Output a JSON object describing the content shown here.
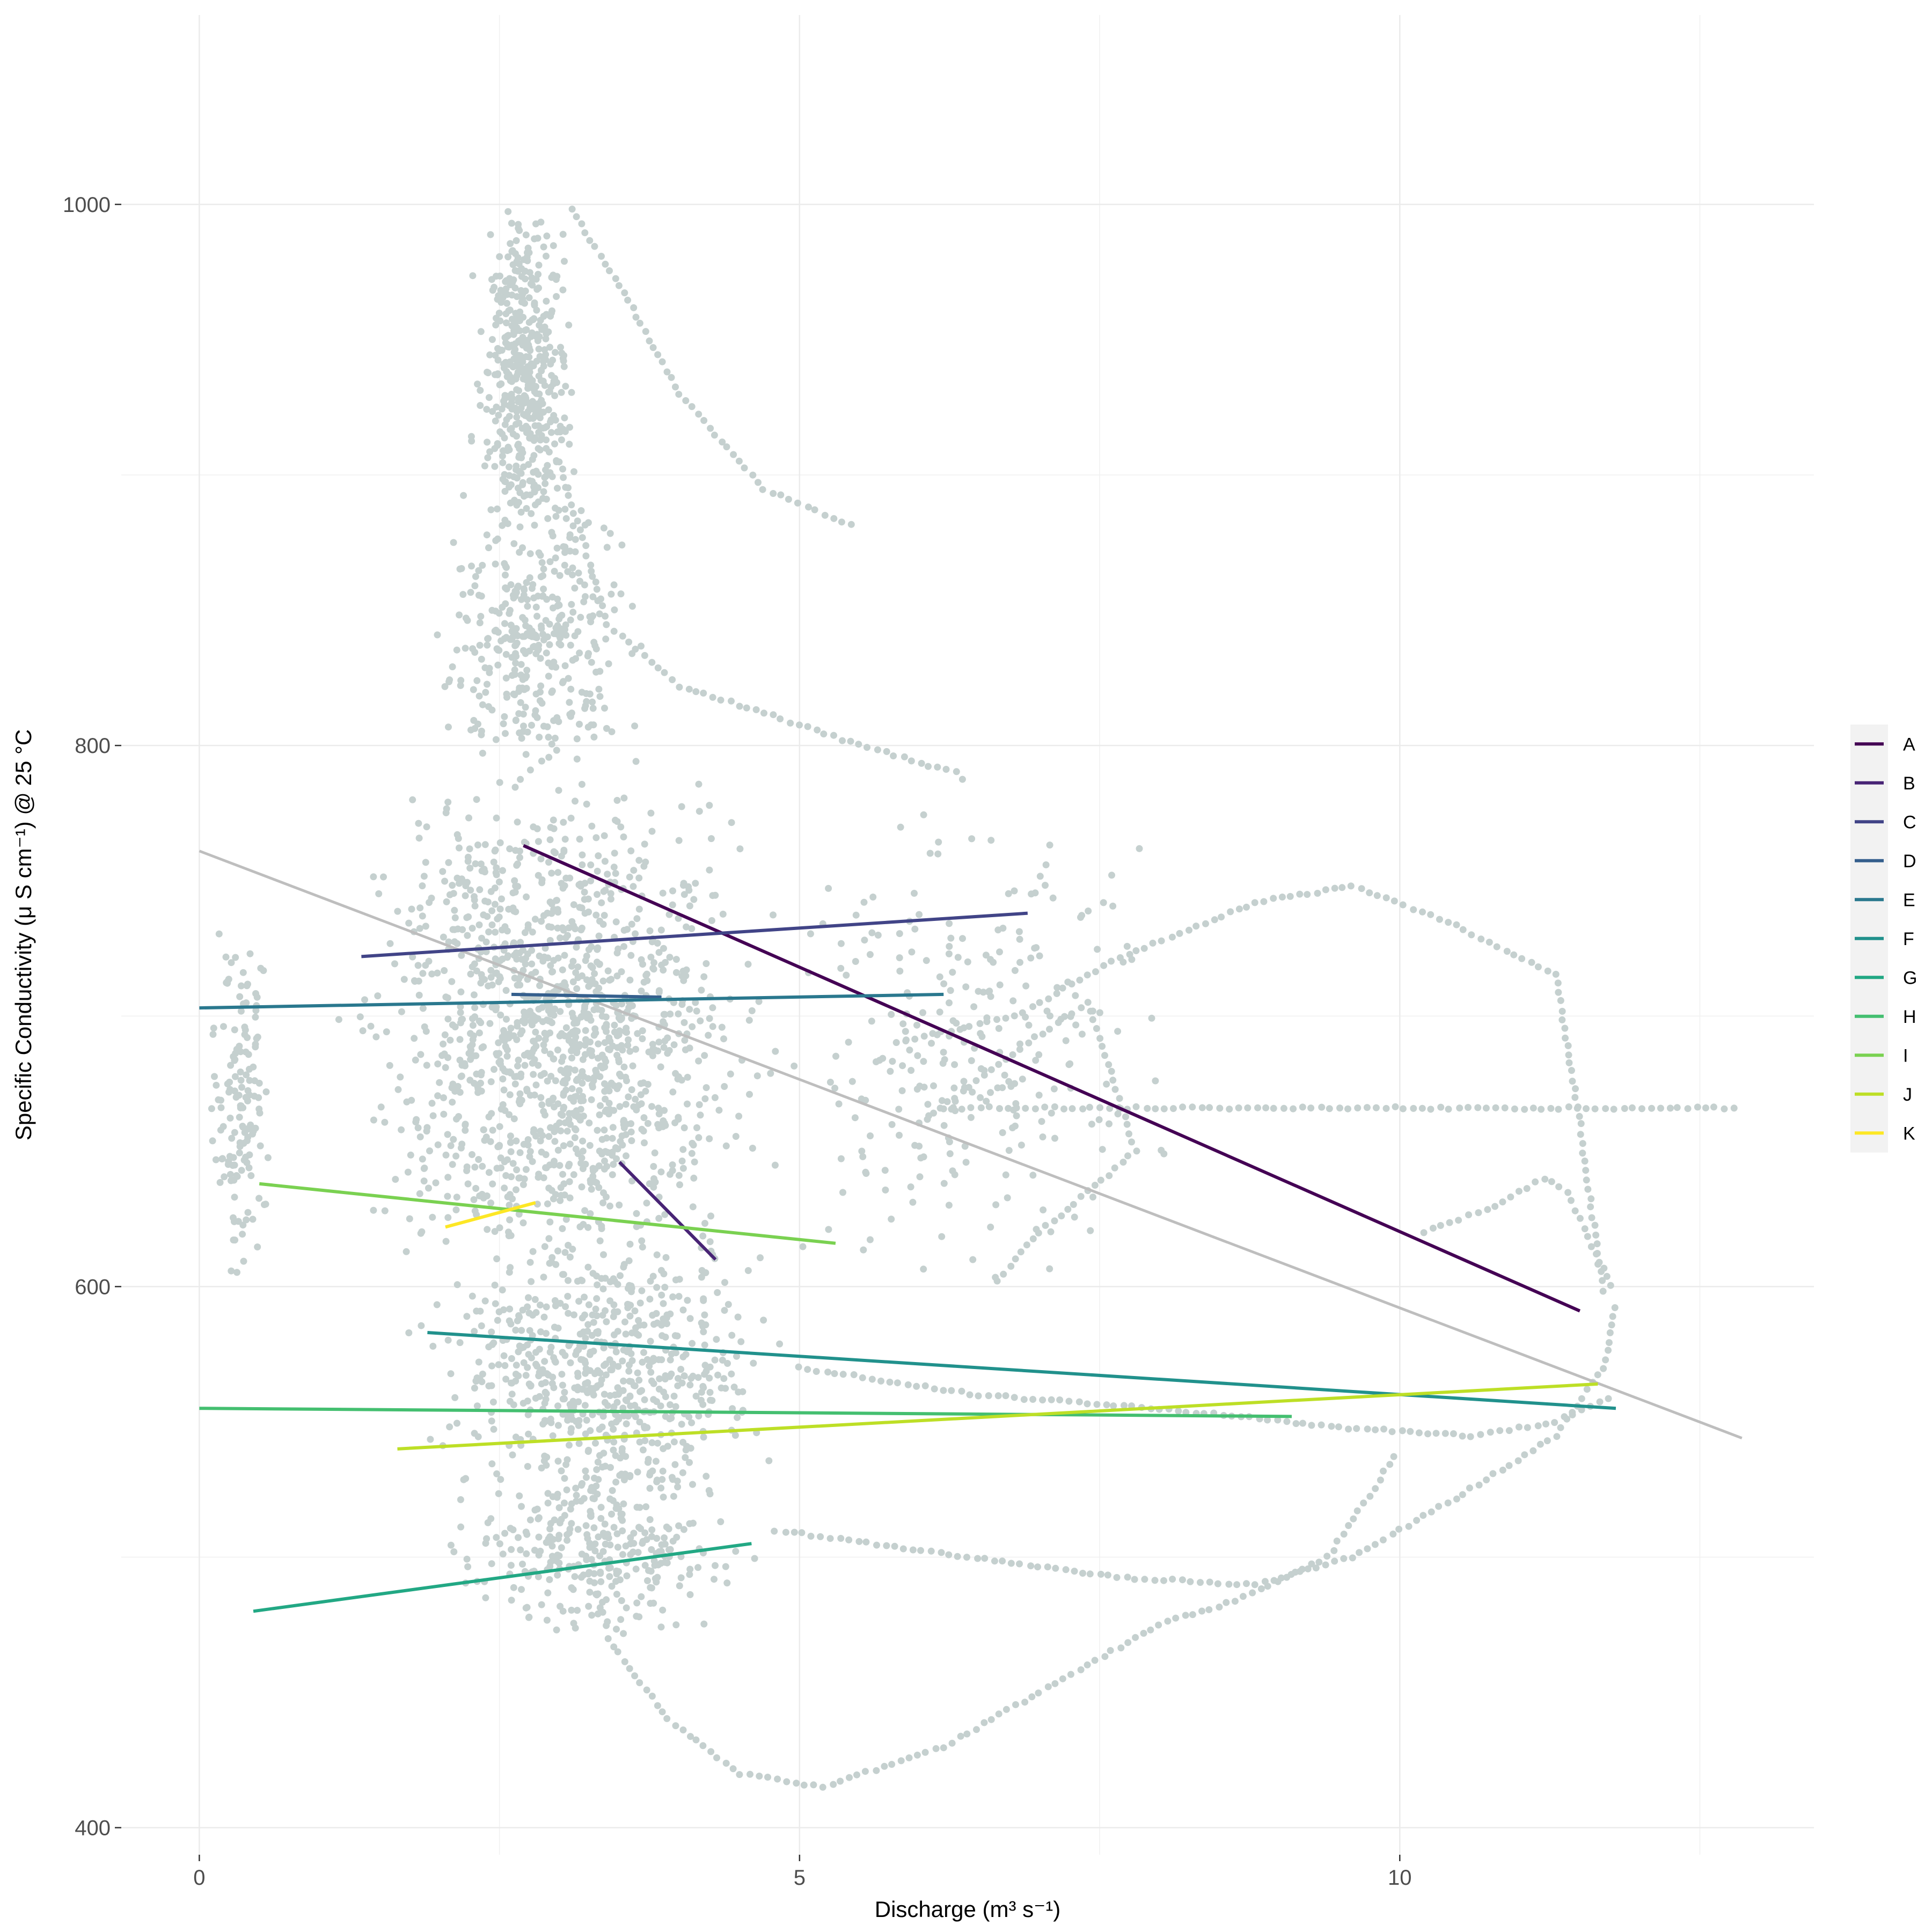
{
  "chart_data": {
    "type": "scatter",
    "xlabel": "Discharge (m³ s⁻¹)",
    "ylabel": "Specific Conductivity (μ S cm⁻¹) @ 25 °C",
    "xlim": [
      -0.65,
      13.45
    ],
    "ylim": [
      390,
      1070
    ],
    "x_ticks": [
      0,
      5,
      10
    ],
    "y_ticks": [
      400,
      600,
      800,
      1000
    ],
    "grid": true,
    "legend_position": "right",
    "point_color": "#c5d0cf",
    "overall_fit": {
      "color": "#bebebe",
      "x": [
        0,
        12.85
      ],
      "y": [
        761,
        544
      ]
    },
    "series": [
      {
        "name": "A",
        "color": "#440154",
        "x": [
          2.7,
          11.5
        ],
        "y": [
          763,
          591
        ]
      },
      {
        "name": "B",
        "color": "#482475",
        "x": [
          3.5,
          4.3
        ],
        "y": [
          646,
          610
        ]
      },
      {
        "name": "C",
        "color": "#414487",
        "x": [
          1.35,
          6.9
        ],
        "y": [
          722,
          738
        ]
      },
      {
        "name": "D",
        "color": "#355f8d",
        "x": [
          2.6,
          3.85
        ],
        "y": [
          708,
          707
        ]
      },
      {
        "name": "E",
        "color": "#2a788e",
        "x": [
          0,
          6.2
        ],
        "y": [
          703,
          708
        ]
      },
      {
        "name": "F",
        "color": "#21918c",
        "x": [
          1.9,
          11.8
        ],
        "y": [
          583,
          555
        ]
      },
      {
        "name": "G",
        "color": "#22a884",
        "x": [
          0.45,
          4.6
        ],
        "y": [
          480,
          505
        ]
      },
      {
        "name": "H",
        "color": "#44bf70",
        "x": [
          0,
          9.1
        ],
        "y": [
          555,
          552
        ]
      },
      {
        "name": "I",
        "color": "#7ad151",
        "x": [
          0.5,
          5.3
        ],
        "y": [
          638,
          616
        ]
      },
      {
        "name": "J",
        "color": "#bddf26",
        "x": [
          1.65,
          11.65
        ],
        "y": [
          540,
          564
        ]
      },
      {
        "name": "K",
        "color": "#fde725",
        "x": [
          2.05,
          2.8
        ],
        "y": [
          622,
          631
        ]
      }
    ],
    "point_clusters": [
      {
        "x": [
          2.2,
          3.2
        ],
        "y": [
          880,
          1000
        ],
        "n": 480
      },
      {
        "x": [
          1.8,
          3.8
        ],
        "y": [
          780,
          900
        ],
        "n": 380
      },
      {
        "x": [
          1.0,
          5.0
        ],
        "y": [
          600,
          790
        ],
        "n": 1300
      },
      {
        "x": [
          0,
          0.7
        ],
        "y": [
          600,
          740
        ],
        "n": 150
      },
      {
        "x": [
          1.5,
          5.2
        ],
        "y": [
          520,
          620
        ],
        "n": 620
      },
      {
        "x": [
          1.8,
          4.8
        ],
        "y": [
          470,
          540
        ],
        "n": 320
      },
      {
        "x": [
          4.5,
          8.5
        ],
        "y": [
          600,
          780
        ],
        "n": 260
      }
    ],
    "point_paths": [
      {
        "x": [
          5.8,
          6.8,
          7.6,
          8.8,
          9.6,
          10.4,
          11.3,
          11.5,
          11.7
        ],
        "y": [
          690,
          700,
          720,
          742,
          748,
          735,
          715,
          660,
          595
        ]
      },
      {
        "x": [
          6.2,
          8.5,
          10.8,
          12.85
        ],
        "y": [
          666,
          666,
          666,
          666
        ]
      },
      {
        "x": [
          4.8,
          6.4,
          7.8,
          8.8,
          9.6,
          10.4,
          11.3,
          11.7,
          11.8
        ],
        "y": [
          510,
          500,
          492,
          490,
          500,
          520,
          545,
          570,
          595
        ]
      },
      {
        "x": [
          3.4,
          3.9,
          4.5,
          5.2,
          6.2,
          7.2,
          8.0,
          8.7,
          9.4,
          10.0
        ],
        "y": [
          470,
          440,
          420,
          415,
          430,
          455,
          475,
          485,
          500,
          540
        ]
      },
      {
        "x": [
          5.0,
          6.5,
          8.0,
          9.5,
          10.6,
          11.3,
          11.8
        ],
        "y": [
          570,
          560,
          555,
          548,
          545,
          550,
          560
        ]
      },
      {
        "x": [
          3.1,
          3.5,
          4.0,
          4.7,
          5.5
        ],
        "y": [
          998,
          970,
          930,
          895,
          880
        ]
      },
      {
        "x": [
          3.0,
          3.4,
          4.0,
          4.7,
          5.5,
          6.3,
          6.4
        ],
        "y": [
          905,
          845,
          822,
          812,
          800,
          790,
          785
        ]
      },
      {
        "x": [
          6.0,
          6.9,
          7.4,
          7.8,
          7.0,
          6.6
        ],
        "y": [
          660,
          690,
          705,
          650,
          620,
          600
        ]
      },
      {
        "x": [
          10.2,
          10.8,
          11.2,
          11.4,
          11.6,
          11.8
        ],
        "y": [
          620,
          630,
          640,
          635,
          615,
          598
        ]
      }
    ]
  }
}
